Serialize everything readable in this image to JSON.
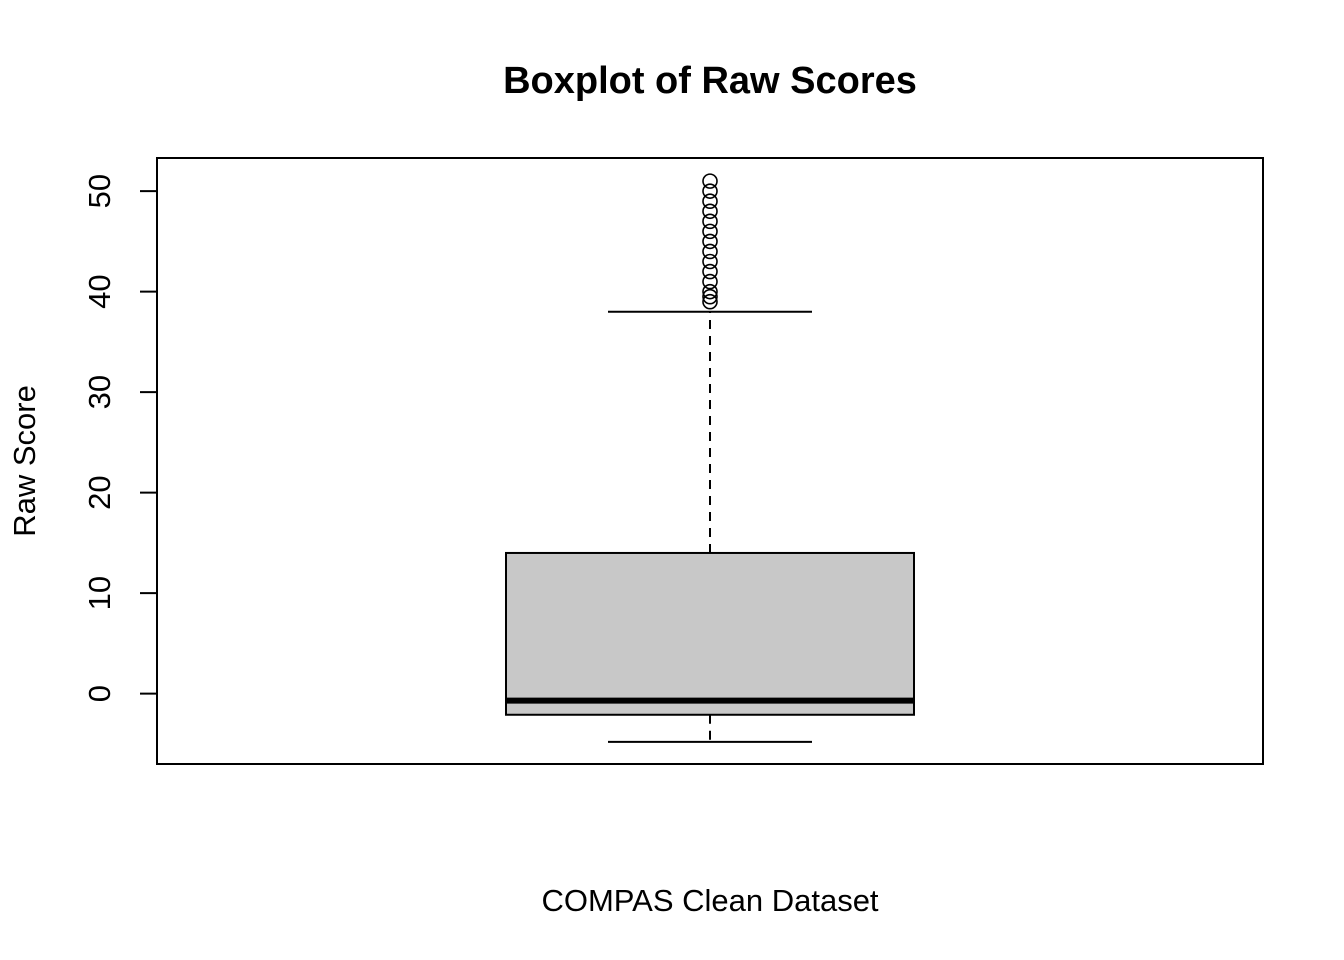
{
  "chart_data": {
    "type": "boxplot",
    "title": "Boxplot of Raw Scores",
    "xlabel": "COMPAS Clean Dataset",
    "ylabel": "Raw Score",
    "ylim": [
      -7,
      53.3
    ],
    "yticks": [
      0,
      10,
      20,
      30,
      40,
      50
    ],
    "grid": false,
    "box": {
      "whisker_low": -4.8,
      "q1": -2.1,
      "median": -0.7,
      "q3": 14,
      "whisker_high": 38
    },
    "outliers": [
      39,
      39.5,
      40,
      41,
      42,
      43,
      44,
      45,
      46,
      47,
      48,
      49,
      50,
      51
    ],
    "colors": {
      "box_fill": "#c8c8c8",
      "line": "#000000"
    }
  }
}
